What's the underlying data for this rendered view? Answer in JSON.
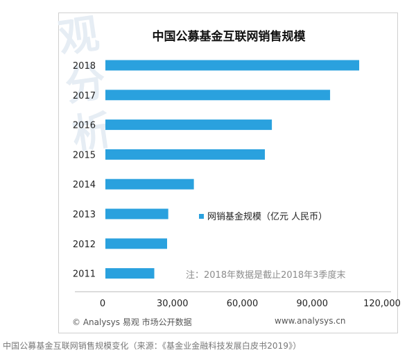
{
  "chart_data": {
    "type": "bar",
    "orientation": "horizontal",
    "title": "中国公募基金互联网销售规模",
    "categories": [
      "2018",
      "2017",
      "2016",
      "2015",
      "2014",
      "2013",
      "2012",
      "2011"
    ],
    "series": [
      {
        "name": "网销基金规模（亿元 人民币）",
        "values": [
          109000,
          96500,
          71500,
          68500,
          38000,
          27000,
          26500,
          21000
        ]
      }
    ],
    "xlim": [
      0,
      120000
    ],
    "xticks": [
      "0",
      "30,000",
      "60,000",
      "90,000",
      "120,000"
    ],
    "bar_color": "#2aa1de",
    "grid": false,
    "legend_position": "right-middle",
    "note": "注：2018年数据是截止2018年3季度末"
  },
  "footer": {
    "left": "© Analysys 易观 市场公开数据",
    "right": "www.analysys.cn"
  },
  "watermark": "观 分 析",
  "caption": "中国公募基金互联网销售规模变化（来源：《基金业金融科技发展白皮书2019》）"
}
